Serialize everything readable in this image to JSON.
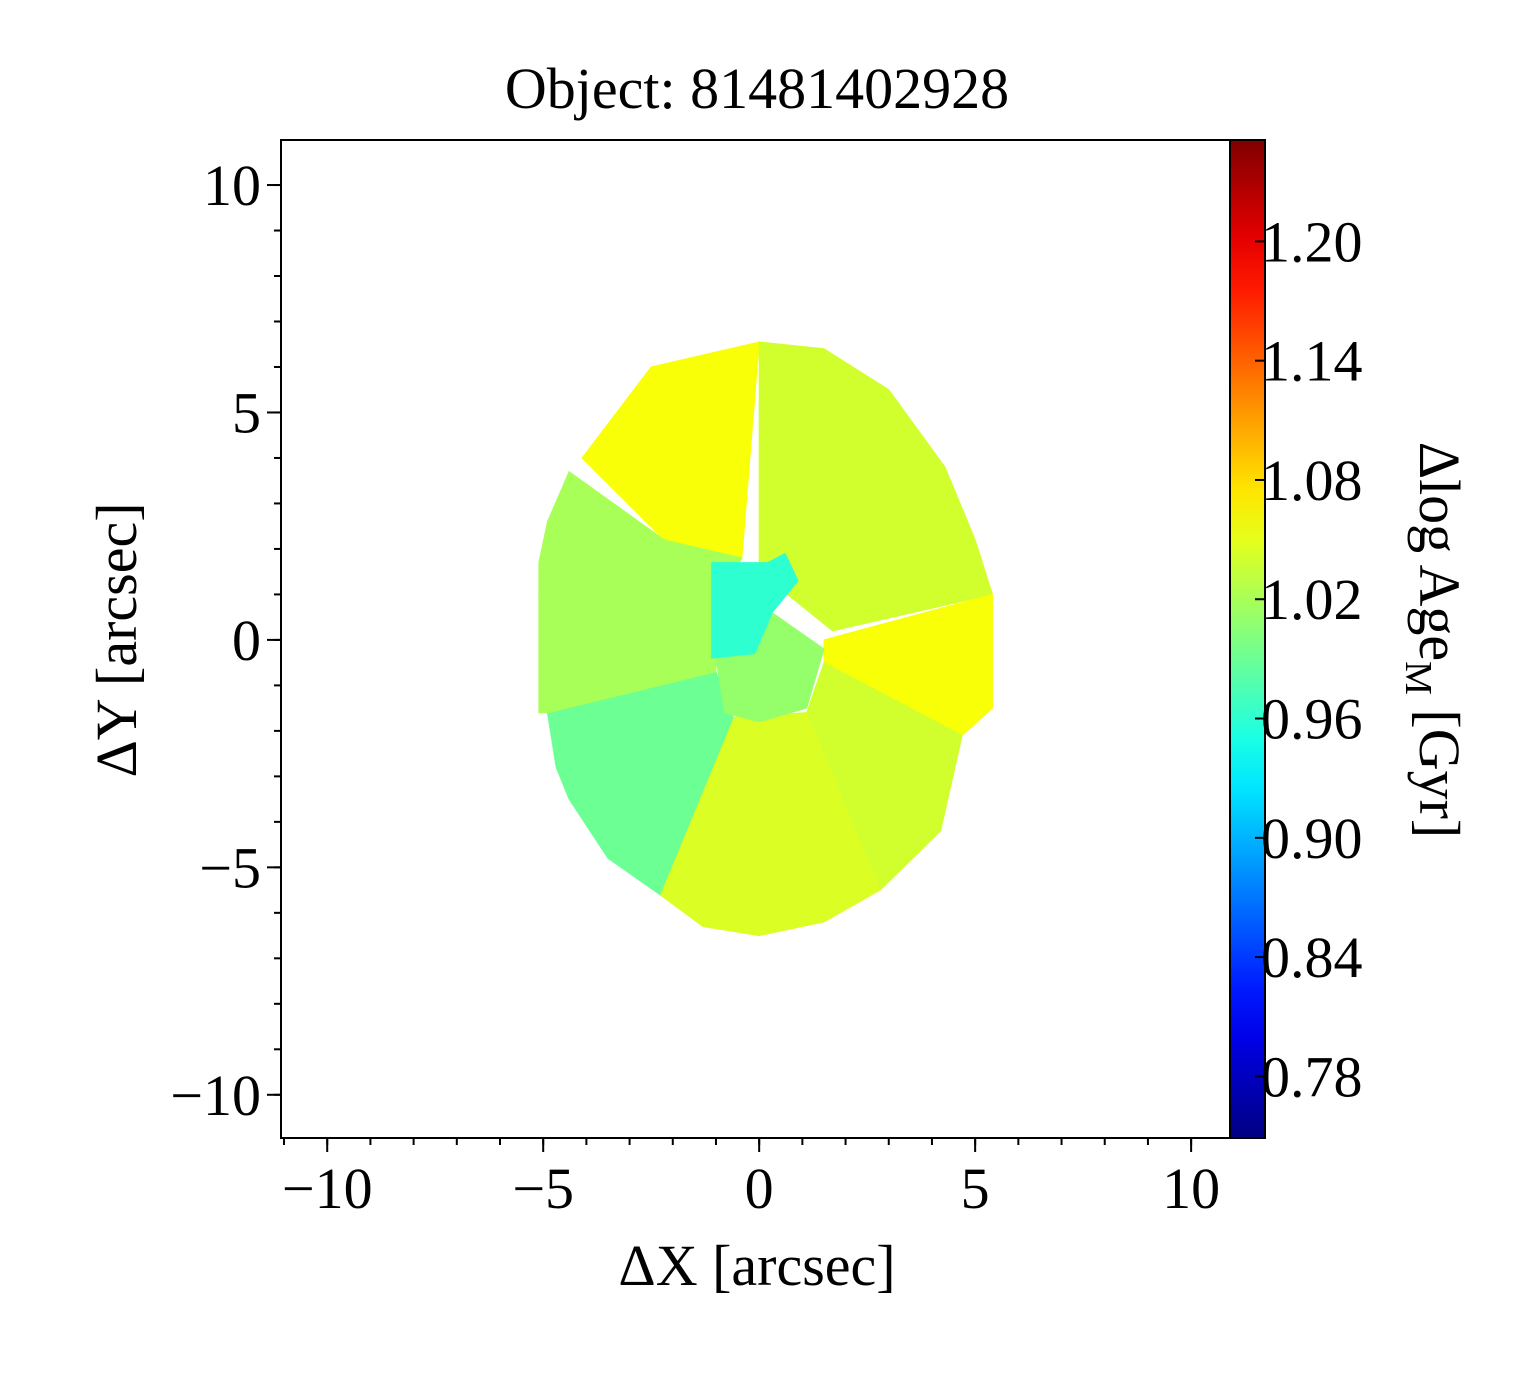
{
  "chart_data": {
    "type": "heatmap",
    "title": "Object: 81481402928",
    "xlabel": "ΔX [arcsec]",
    "ylabel": "ΔY [arcsec]",
    "colorbar_label": {
      "text": "Δlog Age",
      "sub": "M",
      "unit": " [Gyr]"
    },
    "colormap": "jet",
    "xlim": [
      -11.07,
      10.9
    ],
    "ylim": [
      -10.95,
      10.99
    ],
    "xticks": [
      {
        "value": -10,
        "label": "−10"
      },
      {
        "value": -5,
        "label": "−5"
      },
      0,
      5,
      10
    ],
    "yticks": [
      {
        "value": -10,
        "label": "−10"
      },
      {
        "value": -5,
        "label": "−5"
      },
      0,
      5,
      10
    ],
    "minor_tick_step": 1,
    "clim": [
      0.749,
      1.251
    ],
    "cticks": [
      {
        "value": 0.78,
        "label": "0.78"
      },
      {
        "value": 0.84,
        "label": "0.84"
      },
      {
        "value": 0.9,
        "label": "0.90"
      },
      {
        "value": 0.96,
        "label": "0.96"
      },
      {
        "value": 1.02,
        "label": "1.02"
      },
      {
        "value": 1.08,
        "label": "1.08"
      },
      {
        "value": 1.14,
        "label": "1.14"
      },
      {
        "value": 1.2,
        "label": "1.20"
      }
    ],
    "regions": [
      {
        "value": 1.06,
        "polygon": [
          [
            -0.4,
            1.8
          ],
          [
            0.0,
            6.55
          ],
          [
            -2.5,
            6.0
          ],
          [
            -4.1,
            4.0
          ],
          [
            -2.2,
            2.2
          ]
        ]
      },
      {
        "value": 1.04,
        "polygon": [
          [
            0.0,
            1.5
          ],
          [
            0.0,
            6.55
          ],
          [
            1.5,
            6.4
          ],
          [
            3.0,
            5.5
          ],
          [
            4.3,
            3.8
          ],
          [
            5.0,
            2.2
          ],
          [
            5.4,
            1.0
          ],
          [
            1.7,
            0.2
          ]
        ]
      },
      {
        "value": 1.06,
        "polygon": [
          [
            1.5,
            0.0
          ],
          [
            5.4,
            1.0
          ],
          [
            5.4,
            -1.5
          ],
          [
            4.7,
            -2.1
          ],
          [
            1.5,
            -0.5
          ]
        ]
      },
      {
        "value": 1.04,
        "polygon": [
          [
            1.5,
            -0.5
          ],
          [
            4.7,
            -2.1
          ],
          [
            4.2,
            -4.2
          ],
          [
            2.8,
            -5.5
          ],
          [
            1.1,
            -1.6
          ]
        ]
      },
      {
        "value": 1.045,
        "polygon": [
          [
            -0.6,
            -1.7
          ],
          [
            1.1,
            -1.6
          ],
          [
            2.8,
            -5.5
          ],
          [
            1.5,
            -6.2
          ],
          [
            0.0,
            -6.5
          ],
          [
            -1.3,
            -6.3
          ],
          [
            -2.3,
            -5.6
          ]
        ]
      },
      {
        "value": 0.99,
        "polygon": [
          [
            -0.6,
            -1.7
          ],
          [
            -2.3,
            -5.6
          ],
          [
            -3.5,
            -4.8
          ],
          [
            -4.4,
            -3.5
          ],
          [
            -4.7,
            -2.8
          ],
          [
            -4.9,
            -1.6
          ],
          [
            -1.0,
            -0.7
          ]
        ]
      },
      {
        "value": 1.02,
        "polygon": [
          [
            -1.0,
            -0.7
          ],
          [
            -4.9,
            -1.6
          ],
          [
            -5.1,
            -1.6
          ],
          [
            -5.1,
            0.9
          ],
          [
            -1.0,
            0.8
          ]
        ]
      },
      {
        "value": 1.02,
        "polygon": [
          [
            -1.0,
            0.8
          ],
          [
            -5.1,
            0.9
          ],
          [
            -5.1,
            1.7
          ],
          [
            -4.9,
            2.6
          ],
          [
            -4.4,
            3.7
          ],
          [
            -2.2,
            2.2
          ],
          [
            -0.4,
            1.8
          ]
        ]
      },
      {
        "value": 1.01,
        "polygon": [
          [
            -1.0,
            -0.4
          ],
          [
            -0.1,
            -0.3
          ],
          [
            0.3,
            0.6
          ],
          [
            1.5,
            -0.2
          ],
          [
            1.1,
            -1.5
          ],
          [
            0.0,
            -1.8
          ],
          [
            -0.8,
            -1.6
          ]
        ]
      },
      {
        "value": 0.96,
        "polygon": [
          [
            -1.1,
            1.7
          ],
          [
            0.2,
            1.7
          ],
          [
            0.6,
            1.9
          ],
          [
            0.9,
            1.3
          ],
          [
            0.3,
            0.6
          ],
          [
            -0.1,
            -0.3
          ],
          [
            -1.1,
            -0.4
          ]
        ]
      }
    ]
  }
}
